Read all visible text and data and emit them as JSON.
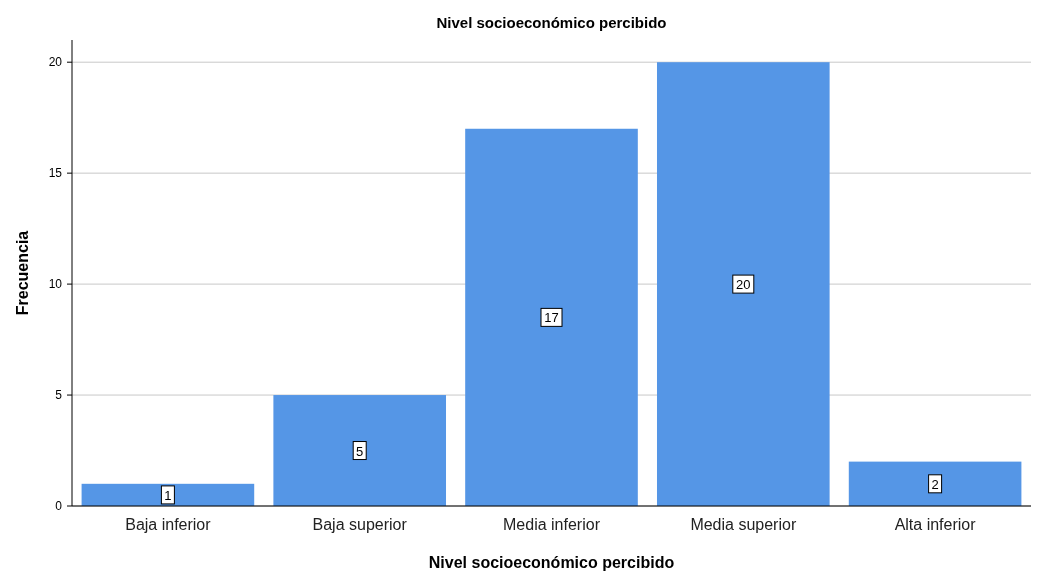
{
  "chart_data": {
    "type": "bar",
    "title": "Nivel socioeconómico percibido",
    "xlabel": "Nivel socioeconómico percibido",
    "ylabel": "Frecuencia",
    "categories": [
      "Baja inferior",
      "Baja superior",
      "Media inferior",
      "Media superior",
      "Alta inferior"
    ],
    "values": [
      1,
      5,
      17,
      20,
      2
    ],
    "color": "#5596e6",
    "ylim": [
      0,
      21
    ],
    "yticks": [
      0,
      5,
      10,
      15,
      20
    ],
    "grid": "y",
    "data_labels": true
  }
}
